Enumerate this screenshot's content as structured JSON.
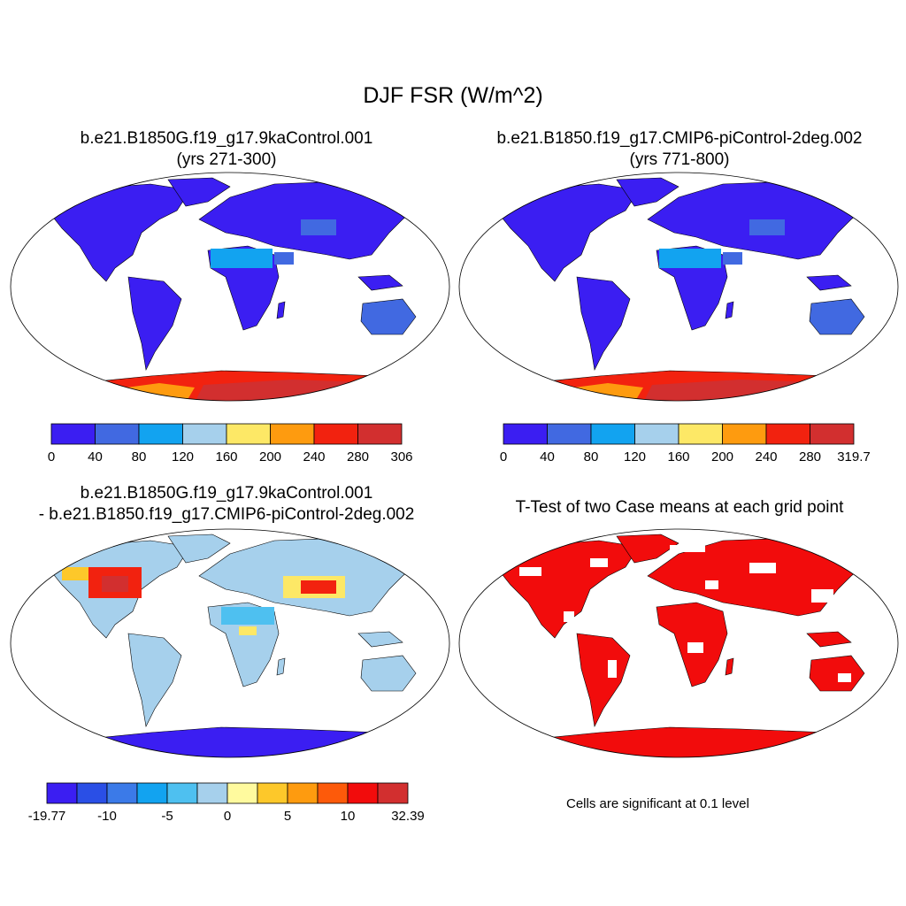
{
  "title": "DJF FSR (W/m^2)",
  "panels": [
    {
      "line1": "b.e21.B1850G.f19_g17.9kaControl.001",
      "line2": "(yrs 271-300)"
    },
    {
      "line1": "b.e21.B1850.f19_g17.CMIP6-piControl-2deg.002",
      "line2": "(yrs 771-800)"
    },
    {
      "line1": "b.e21.B1850G.f19_g17.9kaControl.001",
      "line2": "- b.e21.B1850.f19_g17.CMIP6-piControl-2deg.002"
    },
    {
      "line1": "T-Test of two Case means at each grid point",
      "line2": ""
    }
  ],
  "colorbars": [
    {
      "labels": [
        "0",
        "40",
        "80",
        "120",
        "160",
        "200",
        "240",
        "280",
        "306"
      ],
      "colors": [
        "#3b1ef2",
        "#4169e1",
        "#12a3f0",
        "#a6d0ec",
        "#fde866",
        "#fe9b0f",
        "#f2220f",
        "#d22f2f"
      ]
    },
    {
      "labels": [
        "0",
        "40",
        "80",
        "120",
        "160",
        "200",
        "240",
        "280",
        "319.7"
      ],
      "colors": [
        "#3b1ef2",
        "#4169e1",
        "#12a3f0",
        "#a6d0ec",
        "#fde866",
        "#fe9b0f",
        "#f2220f",
        "#d22f2f"
      ]
    },
    {
      "labels": [
        "-19.77",
        "-10",
        "-5",
        "0",
        "5",
        "10",
        "32.39"
      ],
      "colors": [
        "#3b1ef2",
        "#2a4fe6",
        "#3b7ae8",
        "#12a3f0",
        "#4ec0f0",
        "#a6d0ec",
        "#fffa9e",
        "#fdc82a",
        "#fe9b0f",
        "#fd5a0a",
        "#f20c0c",
        "#d22f2f"
      ]
    }
  ],
  "note": "Cells are significant at 0.1 level"
}
